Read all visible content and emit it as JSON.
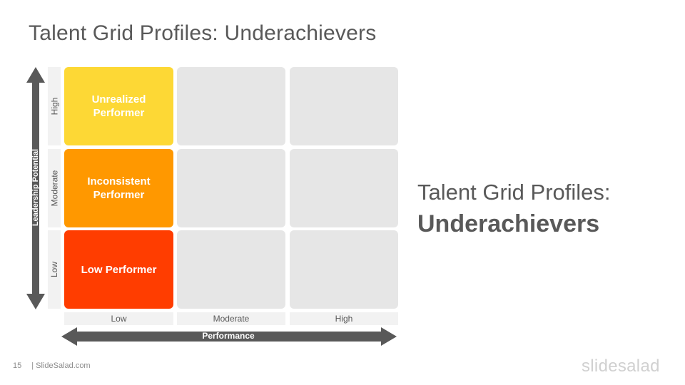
{
  "title": "Talent Grid Profiles: Underachievers",
  "grid": {
    "y_axis_title": "Leadership Potential",
    "x_axis_title": "Performance",
    "rows": [
      "High",
      "Moderate",
      "Low"
    ],
    "columns": [
      "Low",
      "Moderate",
      "High"
    ],
    "cells": [
      {
        "label": "Unrealized Performer",
        "color": "#FDD835"
      },
      {
        "label": "Inconsistent Performer",
        "color": "#FF9800"
      },
      {
        "label": "Low Performer",
        "color": "#FF3D00"
      }
    ],
    "empty_color": "#E6E6E6"
  },
  "side_title": {
    "line1": "Talent Grid Profiles:",
    "line2": "Underachievers"
  },
  "footer": {
    "page_number": "15",
    "source": "| SlideSalad.com"
  },
  "brand": "slidesalad"
}
